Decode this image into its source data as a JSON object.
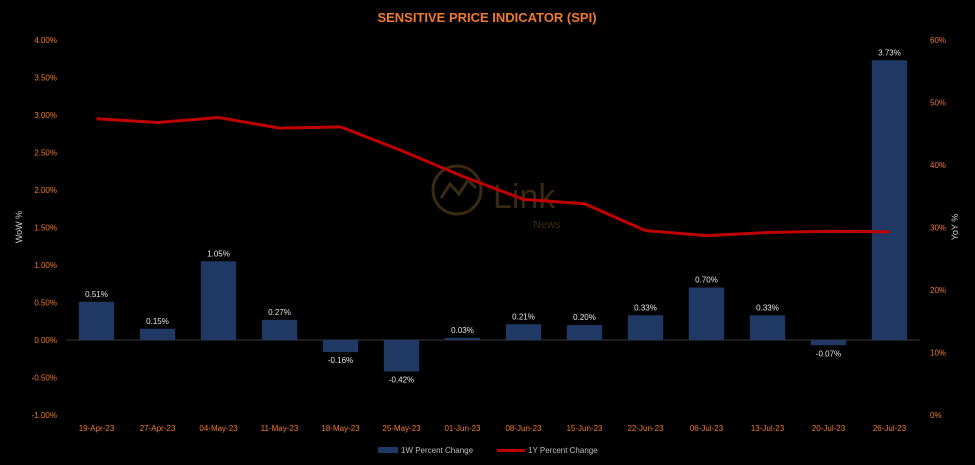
{
  "chart_data": {
    "type": "bar+line",
    "title": "SENSITIVE PRICE INDICATOR (SPI)",
    "y_left_label": "WoW %",
    "y_right_label": "YoY %",
    "categories": [
      "19-Apr-23",
      "27-Apr-23",
      "04-May-23",
      "11-May-23",
      "18-May-23",
      "25-May-23",
      "01-Jun-23",
      "08-Jun-23",
      "15-Jun-23",
      "22-Jun-23",
      "06-Jul-23",
      "13-Jul-23",
      "20-Jul-23",
      "26-Jul-23"
    ],
    "left_ticks": [
      "4.00%",
      "3.50%",
      "3.00%",
      "2.50%",
      "2.00%",
      "1.50%",
      "1.00%",
      "0.50%",
      "0.00%",
      "-0.50%",
      "-1.00%"
    ],
    "right_ticks": [
      "60%",
      "50%",
      "40%",
      "30%",
      "20%",
      "10%",
      "0%"
    ],
    "ylim_left": [
      -1.0,
      4.0
    ],
    "ylim_right": [
      0,
      60
    ],
    "series": [
      {
        "name": "1W Percent Change",
        "type": "bar",
        "axis": "left",
        "color": "#1f3864",
        "values": [
          0.51,
          0.15,
          1.05,
          0.27,
          -0.16,
          -0.42,
          0.03,
          0.21,
          0.2,
          0.33,
          0.7,
          0.33,
          -0.07,
          3.73
        ],
        "labels": [
          "0.51%",
          "0.15%",
          "1.05%",
          "0.27%",
          "-0.16%",
          "-0.42%",
          "0.03%",
          "0.21%",
          "0.20%",
          "0.33%",
          "0.70%",
          "0.33%",
          "-0.07%",
          "3.73%"
        ]
      },
      {
        "name": "1Y Percent Change",
        "type": "line",
        "axis": "right",
        "color": "#c00000",
        "values": [
          47.4,
          46.8,
          47.6,
          45.9,
          46.1,
          42.3,
          38.2,
          34.5,
          33.8,
          29.5,
          28.7,
          29.2,
          29.4,
          29.3
        ]
      }
    ],
    "legend": {
      "position": "bottom",
      "items": [
        "1W Percent Change",
        "1Y Percent Change"
      ]
    }
  },
  "watermark": {
    "brand": "Link",
    "sub": "News"
  }
}
